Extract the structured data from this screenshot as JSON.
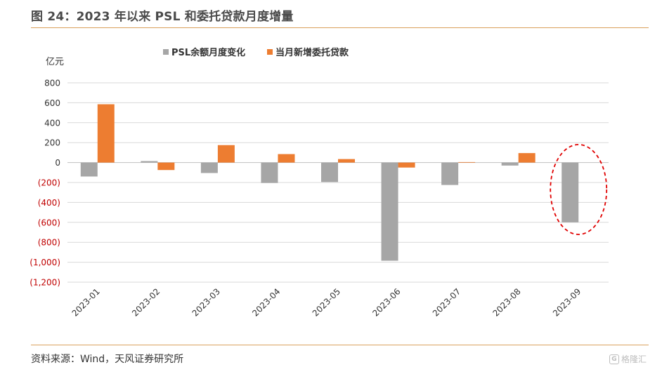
{
  "title": "图 24：2023 年以来 PSL 和委托贷款月度增量",
  "source": "资料来源：Wind，天风证券研究所",
  "watermark": "格隆汇",
  "colors": {
    "psl": "#a6a6a6",
    "entrusted": "#ed7d31",
    "negative_tick": "#c00000",
    "positive_tick": "#333333",
    "grid": "#d9d9d9",
    "highlight": "#e00000",
    "rule": "#d9a05b"
  },
  "chart_data": {
    "type": "bar",
    "unit_label": "亿元",
    "categories": [
      "2023-01",
      "2023-02",
      "2023-03",
      "2023-04",
      "2023-05",
      "2023-06",
      "2023-07",
      "2023-08",
      "2023-09"
    ],
    "series": [
      {
        "name": "PSL余额月度变化",
        "values": [
          -140,
          15,
          -105,
          -205,
          -195,
          -985,
          -225,
          -30,
          -600
        ]
      },
      {
        "name": "当月新增委托贷款",
        "values": [
          585,
          -75,
          175,
          85,
          35,
          -50,
          5,
          95,
          null
        ]
      }
    ],
    "ylim": [
      -1200,
      800
    ],
    "yticks": [
      800,
      600,
      400,
      200,
      0,
      -200,
      -400,
      -600,
      -800,
      -1000,
      -1200
    ],
    "ytick_labels": [
      "800",
      "600",
      "400",
      "200",
      "0",
      "(200)",
      "(400)",
      "(600)",
      "(800)",
      "(1,000)",
      "(1,200)"
    ],
    "grid": true,
    "legend_position": "top",
    "highlight_category": "2023-09"
  }
}
